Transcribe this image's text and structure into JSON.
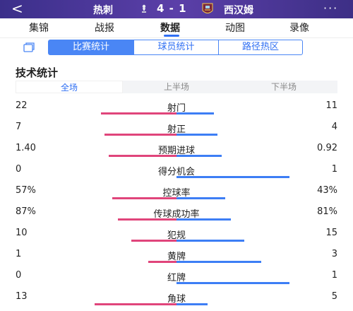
{
  "header": {
    "back_icon": "chevron-left-icon",
    "home_team": "热刺",
    "score": "4 - 1",
    "away_team": "西汉姆",
    "more_icon": "more-dots-icon"
  },
  "main_tabs": [
    {
      "label": "集锦",
      "active": false
    },
    {
      "label": "战报",
      "active": false
    },
    {
      "label": "数据",
      "active": true
    },
    {
      "label": "动图",
      "active": false
    },
    {
      "label": "录像",
      "active": false
    }
  ],
  "sub_tabs": [
    {
      "label": "比赛统计",
      "active": true
    },
    {
      "label": "球员统计",
      "active": false
    },
    {
      "label": "路径热区",
      "active": false
    }
  ],
  "section_title": "技术统计",
  "period_tabs": [
    {
      "label": "全场",
      "active": true
    },
    {
      "label": "上半场",
      "active": false
    },
    {
      "label": "下半场",
      "active": false
    }
  ],
  "colors": {
    "home": "#e0457b",
    "away": "#3d7ef5",
    "header": "#4a3a9a",
    "accent": "#2f6ff3"
  },
  "stats": [
    {
      "label": "射门",
      "home": "22",
      "away": "11",
      "home_share": 0.667,
      "away_share": 0.333
    },
    {
      "label": "射正",
      "home": "7",
      "away": "4",
      "home_share": 0.636,
      "away_share": 0.364
    },
    {
      "label": "预期进球",
      "home": "1.40",
      "away": "0.92",
      "home_share": 0.603,
      "away_share": 0.397
    },
    {
      "label": "得分机会",
      "home": "0",
      "away": "1",
      "home_share": 0.0,
      "away_share": 1.0
    },
    {
      "label": "控球率",
      "home": "57%",
      "away": "43%",
      "home_share": 0.57,
      "away_share": 0.43
    },
    {
      "label": "传球成功率",
      "home": "87%",
      "away": "81%",
      "home_share": 0.518,
      "away_share": 0.482
    },
    {
      "label": "犯规",
      "home": "10",
      "away": "15",
      "home_share": 0.4,
      "away_share": 0.6
    },
    {
      "label": "黄牌",
      "home": "1",
      "away": "3",
      "home_share": 0.25,
      "away_share": 0.75
    },
    {
      "label": "红牌",
      "home": "0",
      "away": "1",
      "home_share": 0.0,
      "away_share": 1.0
    },
    {
      "label": "角球",
      "home": "13",
      "away": "5",
      "home_share": 0.722,
      "away_share": 0.278
    }
  ]
}
